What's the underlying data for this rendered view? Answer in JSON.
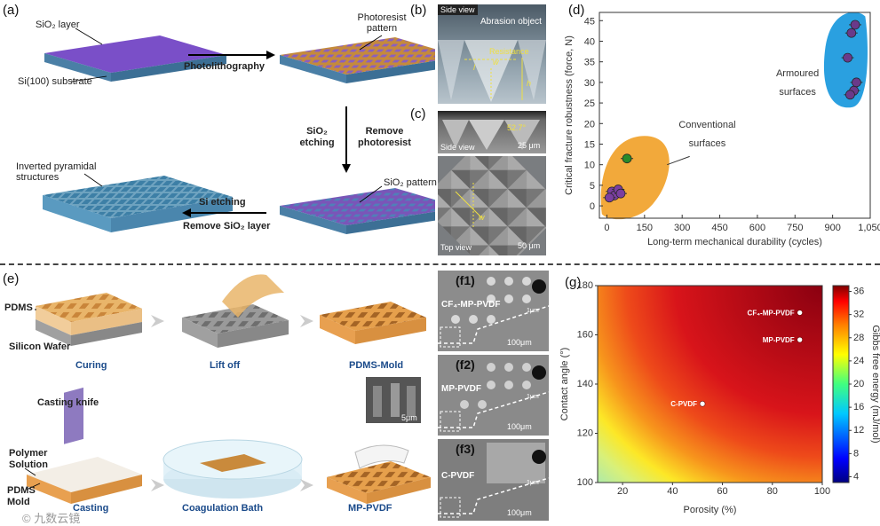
{
  "panels": {
    "a": "(a)",
    "b": "(b)",
    "c": "(c)",
    "d": "(d)",
    "e": "(e)",
    "f1": "(f1)",
    "f2": "(f2)",
    "f3": "(f3)",
    "g": "(g)"
  },
  "panel_a": {
    "sio2_layer": "SiO₂ layer",
    "si_substrate": "Si(100) substrate",
    "photoresist_pattern": "Photoresist pattern",
    "photolithography": "Photolithography",
    "sio2_etching": "SiO₂ etching",
    "remove_photoresist": "Remove photoresist",
    "sio2_pattern": "SiO₂ pattern",
    "si_etching": "Si etching",
    "remove_sio2": "Remove SiO₂ layer",
    "inverted_pyramidal": "Inverted pyramidal structures"
  },
  "panel_b": {
    "side_view": "Side view",
    "abrasion_object": "Abrasion object",
    "resistance": "Resistance",
    "l": "l",
    "w": "w",
    "h": "h"
  },
  "panel_c": {
    "side_view": "Side view",
    "angle": "52.7°",
    "scale1": "25 μm",
    "top_view": "Top view",
    "scale2": "50 μm",
    "w": "w"
  },
  "panel_e": {
    "pdms": "PDMS",
    "silicon_wafer": "Silicon Wafer",
    "curing": "Curing",
    "lift_off": "Lift off",
    "pdms_mold_caption": "PDMS-Mold",
    "casting_knife": "Casting knife",
    "polymer_solution": "Polymer Solution",
    "pdms_mold": "PDMS Mold",
    "casting": "Casting",
    "coagulation_bath": "Coagulation Bath",
    "mp_pvdf": "MP-PVDF",
    "inset_scale": "5μm",
    "watermark": "© 九数云镜"
  },
  "panel_f": {
    "f1_name": "CF₄-MP-PVDF",
    "f2_name": "MP-PVDF",
    "f3_name": "C-PVDF",
    "scale": "100μm",
    "inset_scale": "1μm"
  },
  "chart_data": [
    {
      "type": "scatter",
      "xlabel": "Long-term mechanical durability (cycles)",
      "ylabel": "Critical fracture robustness (force, N)",
      "xlim": [
        -30,
        1050
      ],
      "ylim": [
        -3,
        47
      ],
      "xticks": [
        "0",
        "150",
        "300",
        "450",
        "600",
        "750",
        "900",
        "1,050"
      ],
      "yticks": [
        "0",
        "5",
        "10",
        "15",
        "20",
        "25",
        "30",
        "35",
        "40",
        "45"
      ],
      "annotations": [
        "Conventional surfaces",
        "Armoured surfaces"
      ],
      "colors": {
        "conventional": "#f2a93b",
        "armoured": "#2aa0e0"
      },
      "series": [
        {
          "points": [
            [
              80,
              11.5
            ]
          ],
          "color": "#2a8a2a"
        },
        {
          "points": [
            [
              20,
              3.5
            ],
            [
              30,
              2.5
            ],
            [
              45,
              4
            ],
            [
              10,
              2
            ],
            [
              55,
              3
            ]
          ],
          "color": "#7b3fa0"
        },
        {
          "points": [
            [
              990,
              44
            ],
            [
              975,
              42
            ],
            [
              960,
              36
            ],
            [
              985,
              28
            ],
            [
              970,
              27
            ],
            [
              995,
              30
            ]
          ],
          "color": "#6a3a8a"
        }
      ]
    },
    {
      "type": "heatmap",
      "xlabel": "Porosity (%)",
      "ylabel": "Contact angle (°)",
      "colorbar_label": "Gibbs free energy (mJ/mol)",
      "xlim": [
        10,
        100
      ],
      "ylim": [
        100,
        180
      ],
      "xticks": [
        "20",
        "40",
        "60",
        "80",
        "100"
      ],
      "yticks": [
        "100",
        "120",
        "140",
        "160",
        "180"
      ],
      "colorbar_ticks": [
        "4",
        "8",
        "12",
        "16",
        "20",
        "24",
        "28",
        "32",
        "36"
      ],
      "colorbar_range": [
        3,
        37
      ],
      "points": [
        {
          "label": "CF₄-MP-PVDF",
          "x": 91,
          "y": 169
        },
        {
          "label": "MP-PVDF",
          "x": 91,
          "y": 158
        },
        {
          "label": "C-PVDF",
          "x": 52,
          "y": 132
        }
      ]
    }
  ]
}
